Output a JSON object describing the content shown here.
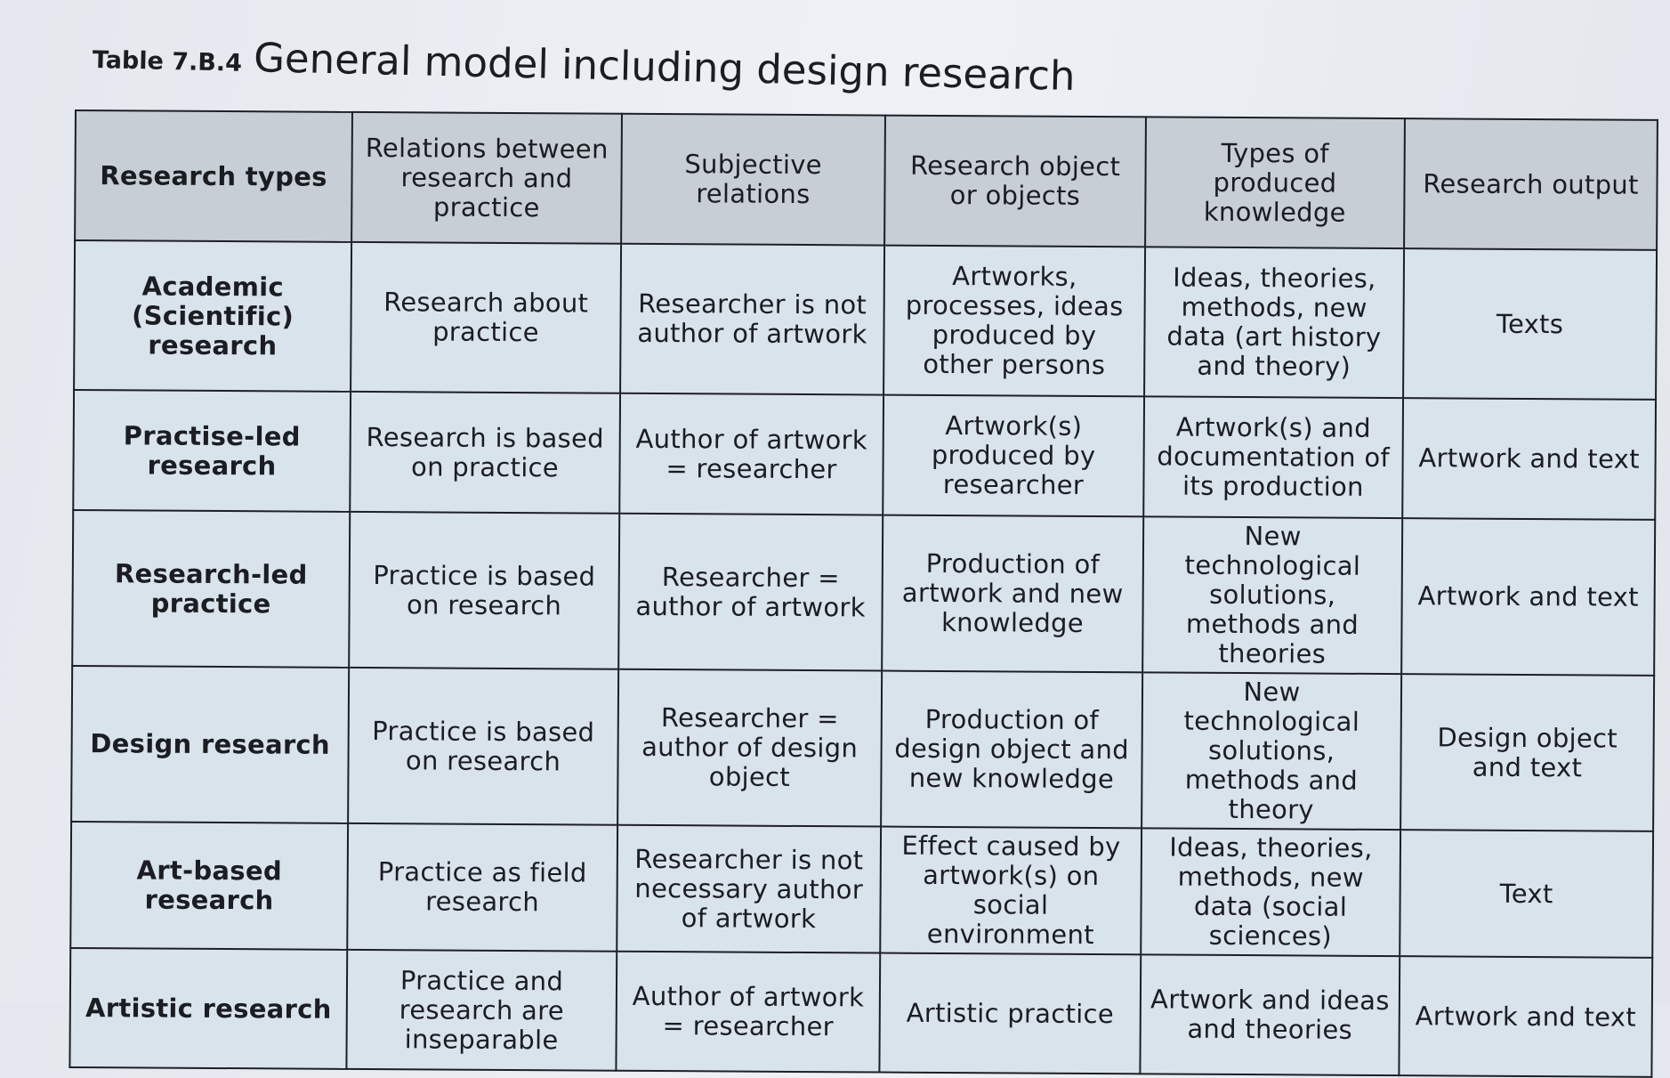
{
  "title": {
    "number": "Table 7.B.4",
    "text": "General model including design research"
  },
  "table": {
    "headers": [
      "Research types",
      "Relations between research and practice",
      "Subjective relations",
      "Research object or objects",
      "Types of produced knowledge",
      "Research output"
    ],
    "rows": [
      [
        "Academic (Scientific) research",
        "Research about practice",
        "Researcher is not author of artwork",
        "Artworks, processes, ideas produced by other persons",
        "Ideas, theories, methods, new data (art history and theory)",
        "Texts"
      ],
      [
        "Practise-led research",
        "Research is based on practice",
        "Author of artwork = researcher",
        "Artwork(s) produced by researcher",
        "Artwork(s) and documentation of its production",
        "Artwork and text"
      ],
      [
        "Research-led practice",
        "Practice is based on research",
        "Researcher = author of artwork",
        "Production of artwork and new knowledge",
        "New technological solutions, methods and theories",
        "Artwork and text"
      ],
      [
        "Design research",
        "Practice is based on research",
        "Researcher = author of design object",
        "Production of design object and new knowledge",
        "New technological solutions, methods and theory",
        "Design object and text"
      ],
      [
        "Art-based research",
        "Practice as field research",
        "Researcher is not necessary author of artwork",
        "Effect caused by artwork(s) on social environment",
        "Ideas, theories, methods, new data (social sciences)",
        "Text"
      ],
      [
        "Artistic research",
        "Practice and research are inseparable",
        "Author of artwork = researcher",
        "Artistic practice",
        "Artwork and ideas and theories",
        "Artwork and text"
      ]
    ]
  }
}
